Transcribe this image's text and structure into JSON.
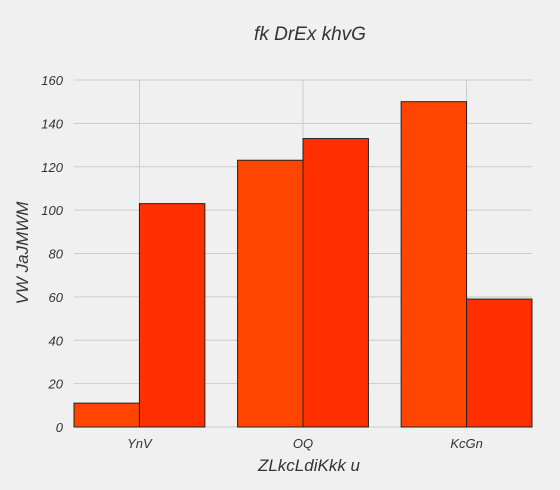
{
  "chart_data": {
    "type": "bar",
    "title": "fk DrEx khvG",
    "xlabel": "ZLkcLdiKkk u",
    "ylabel": "VW JaJMWM",
    "categories": [
      "YnV",
      "OQ",
      "KcGn"
    ],
    "series": [
      {
        "values": [
          11,
          123,
          150
        ],
        "color": "#ff4500"
      },
      {
        "values": [
          103,
          133,
          59
        ],
        "color": "#ff2f00"
      }
    ],
    "ylim": [
      0,
      160
    ],
    "yticks": [
      0,
      20,
      40,
      60,
      80,
      100,
      120,
      140,
      160
    ],
    "grid": true,
    "legend": "none"
  },
  "colors": {
    "background": "#f0f0f0",
    "grid": "#cbcbcb",
    "bar_edge": "#222222"
  }
}
